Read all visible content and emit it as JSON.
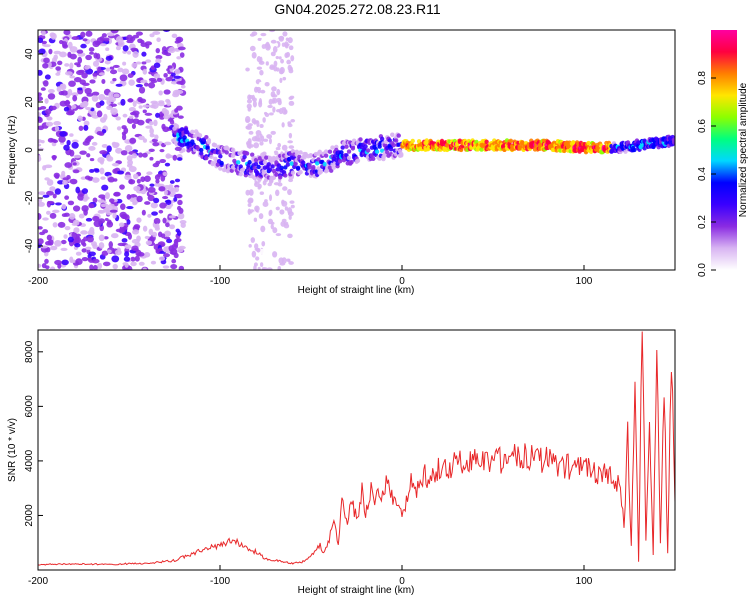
{
  "title": "GN04.2025.272.08.23.R11",
  "colors": {
    "snr_line": "#e8282a",
    "frame": "#000000",
    "background": "#ffffff"
  },
  "chart_data": [
    {
      "type": "heatmap",
      "xlabel": "Height of straight line (km)",
      "ylabel": "Frequency (Hz)",
      "xlim": [
        -200,
        150
      ],
      "ylim": [
        -50,
        50
      ],
      "xticks": [
        -200,
        -100,
        0,
        100
      ],
      "yticks": [
        -40,
        -20,
        0,
        20,
        40
      ],
      "grid": false,
      "colorbar": {
        "label": "Normalized spectral amplitude",
        "range": [
          0,
          1
        ],
        "ticks": [
          "0.0",
          "0.2",
          "0.4",
          "0.6",
          "0.8"
        ],
        "colormap": [
          "#ffffff",
          "#d8b4f2",
          "#8a2be2",
          "#3a00ff",
          "#0000ff",
          "#00d7ff",
          "#00ff7f",
          "#8cff00",
          "#ffe600",
          "#ff7f00",
          "#ff0040",
          "#ff00a0"
        ]
      },
      "ridge": {
        "x": [
          -125,
          -110,
          -100,
          -90,
          -80,
          -70,
          -60,
          -50,
          -40,
          -30,
          -20,
          -10,
          0,
          10,
          20,
          40,
          60,
          80,
          100,
          120,
          140,
          150
        ],
        "frequency": [
          6,
          2,
          -3,
          -5,
          -7,
          -8,
          -5,
          -7,
          -4,
          -1,
          0,
          1,
          2,
          2,
          2,
          2,
          2,
          2,
          1,
          1,
          3,
          4
        ]
      },
      "note_regions": {
        "noise_x": [
          -200,
          -120
        ],
        "noise_band_x": [
          -85,
          -60
        ]
      }
    },
    {
      "type": "line",
      "xlabel": "Height of straight line (km)",
      "ylabel": "SNR (10 * v/v)",
      "xlim": [
        -200,
        150
      ],
      "ylim": [
        0,
        8800
      ],
      "xticks": [
        -200,
        -100,
        0,
        100
      ],
      "yticks": [
        2000,
        4000,
        6000,
        8000
      ],
      "grid": false,
      "series": [
        {
          "x": [
            -200,
            -180,
            -160,
            -140,
            -125,
            -115,
            -110,
            -100,
            -95,
            -90,
            -85,
            -80,
            -75,
            -70,
            -65,
            -60,
            -55,
            -50,
            -48,
            -45,
            -43,
            -40,
            -38,
            -35,
            -33,
            -30,
            -28,
            -25,
            -22,
            -20,
            -17,
            -15,
            -12,
            -10,
            -8,
            -5,
            -3,
            0,
            3,
            5,
            8,
            10,
            12,
            15,
            20,
            25,
            30,
            35,
            40,
            45,
            50,
            55,
            60,
            65,
            70,
            75,
            80,
            85,
            90,
            95,
            100,
            105,
            110,
            115,
            118,
            120,
            122,
            124,
            126,
            128,
            130,
            132,
            134,
            136,
            138,
            140,
            142,
            144,
            146,
            148,
            150
          ],
          "values": [
            200,
            220,
            210,
            250,
            350,
            600,
            750,
            900,
            1050,
            1000,
            800,
            650,
            400,
            350,
            300,
            250,
            300,
            500,
            700,
            900,
            600,
            1100,
            1900,
            1000,
            2500,
            1500,
            2800,
            1800,
            2900,
            2100,
            3100,
            2600,
            2900,
            2700,
            3300,
            2600,
            2300,
            2100,
            2700,
            3200,
            2800,
            3400,
            3500,
            3400,
            3700,
            3800,
            3900,
            4000,
            4100,
            4050,
            4000,
            4050,
            4100,
            4250,
            4100,
            4000,
            4050,
            3900,
            3800,
            3750,
            3700,
            3600,
            3500,
            3400,
            3200,
            3000,
            1500,
            5000,
            800,
            7000,
            300,
            8800,
            1200,
            6000,
            500,
            8100,
            900,
            6500,
            700,
            7500,
            2500
          ]
        }
      ]
    }
  ]
}
